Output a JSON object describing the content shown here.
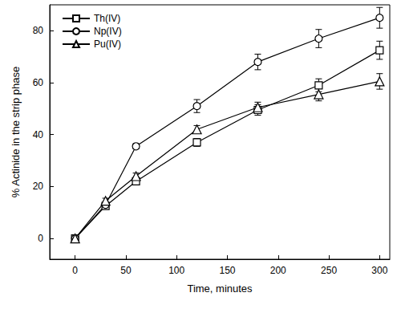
{
  "chart_data": {
    "type": "line",
    "x_label": "Time, minutes",
    "y_label": "% Actinide in the strip phase",
    "x": [
      0,
      30,
      60,
      120,
      180,
      240,
      300
    ],
    "series": [
      {
        "name": "Th(IV)",
        "color": "#000000",
        "marker": "square",
        "line_style": "solid",
        "values": [
          0,
          12.5,
          22,
          37,
          49.5,
          59,
          72.5
        ],
        "errors": [
          0,
          1,
          1.2,
          1.5,
          2,
          2.5,
          3.5
        ]
      },
      {
        "name": "Np(IV)",
        "color": "#000000",
        "marker": "circle",
        "line_style": "solid",
        "values": [
          0,
          13,
          35.5,
          51,
          68,
          77,
          85
        ],
        "errors": [
          0,
          1,
          1,
          2.5,
          3,
          3.5,
          4
        ]
      },
      {
        "name": "Pu(IV)",
        "color": "#000000",
        "marker": "triangle",
        "line_style": "solid",
        "values": [
          0,
          14.5,
          24,
          42,
          50.5,
          55.5,
          60.5
        ],
        "errors": [
          0,
          1,
          1.2,
          1.5,
          2,
          2.5,
          3
        ]
      }
    ],
    "xlim": [
      -25,
      310
    ],
    "xticks": [
      0,
      50,
      100,
      150,
      200,
      250,
      300
    ],
    "ylim": [
      -8,
      90
    ],
    "yticks": [
      0,
      20,
      40,
      60,
      80
    ],
    "legend": "top-left",
    "grid": false
  }
}
